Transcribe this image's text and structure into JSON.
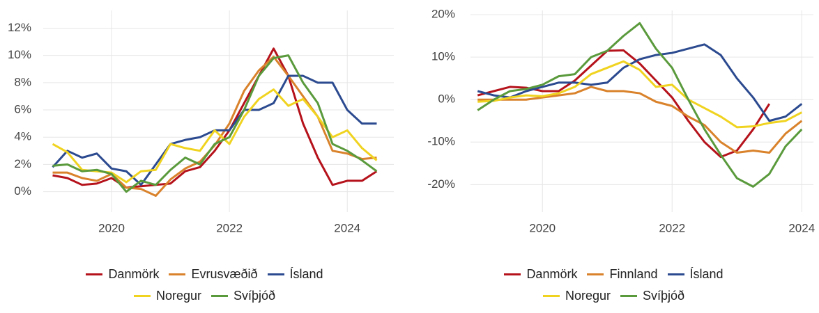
{
  "chart_data": [
    {
      "type": "line",
      "x": [
        2019,
        2019.25,
        2019.5,
        2019.75,
        2020,
        2020.25,
        2020.5,
        2020.75,
        2021,
        2021.25,
        2021.5,
        2021.75,
        2022,
        2022.25,
        2022.5,
        2022.75,
        2023,
        2023.25,
        2023.5,
        2023.75,
        2024,
        2024.25,
        2024.5
      ],
      "xlim": [
        2018.84,
        2024.79
      ],
      "xticks": [
        2020,
        2022,
        2024
      ],
      "ylim": [
        -1.5,
        13.3
      ],
      "yticks": [
        {
          "value": 0,
          "label": "0%"
        },
        {
          "value": 2,
          "label": "2%"
        },
        {
          "value": 4,
          "label": "4%"
        },
        {
          "value": 6,
          "label": "6%"
        },
        {
          "value": 8,
          "label": "8%"
        },
        {
          "value": 10,
          "label": "10%"
        },
        {
          "value": 12,
          "label": "12%"
        }
      ],
      "grid": true,
      "series": [
        {
          "name": "Danmörk",
          "color": "#b5121b",
          "values": [
            1.2,
            1.0,
            0.5,
            0.6,
            1.0,
            0.3,
            0.4,
            0.5,
            0.6,
            1.5,
            1.8,
            3.0,
            4.5,
            6.5,
            8.5,
            10.5,
            8.5,
            5.0,
            2.5,
            0.5,
            0.8,
            0.8,
            1.5
          ]
        },
        {
          "name": "Evrusvæðið",
          "color": "#d9822b",
          "values": [
            1.4,
            1.4,
            1.0,
            0.8,
            1.3,
            0.3,
            0.2,
            -0.3,
            0.9,
            1.7,
            2.2,
            3.4,
            5.0,
            7.4,
            8.9,
            9.9,
            8.5,
            7.0,
            5.5,
            3.0,
            2.8,
            2.4,
            2.5
          ]
        },
        {
          "name": "Ísland",
          "color": "#2b4a8f",
          "values": [
            1.8,
            3.0,
            2.5,
            2.8,
            1.7,
            1.5,
            0.5,
            2.0,
            3.5,
            3.8,
            4.0,
            4.5,
            4.5,
            6.0,
            6.0,
            6.5,
            8.5,
            8.5,
            8.0,
            8.0,
            6.0,
            5.0,
            5.0
          ]
        },
        {
          "name": "Noregur",
          "color": "#f0d320",
          "values": [
            3.5,
            2.9,
            1.6,
            1.5,
            1.4,
            0.7,
            1.5,
            1.6,
            3.5,
            3.2,
            3.0,
            4.5,
            3.5,
            5.5,
            6.8,
            7.5,
            6.3,
            6.8,
            5.5,
            4.0,
            4.5,
            3.2,
            2.3
          ]
        },
        {
          "name": "Svíþjóð",
          "color": "#5a9a3c",
          "values": [
            1.9,
            2.0,
            1.5,
            1.6,
            1.3,
            0.0,
            0.8,
            0.5,
            1.6,
            2.5,
            2.0,
            3.5,
            4.0,
            6.0,
            8.5,
            9.8,
            10.0,
            8.0,
            6.5,
            3.5,
            3.0,
            2.3,
            1.5
          ]
        }
      ]
    },
    {
      "type": "line",
      "x": [
        2019,
        2019.25,
        2019.5,
        2019.75,
        2020,
        2020.25,
        2020.5,
        2020.75,
        2021,
        2021.25,
        2021.5,
        2021.75,
        2022,
        2022.25,
        2022.5,
        2022.75,
        2023,
        2023.25,
        2023.5,
        2023.75,
        2024
      ],
      "xlim": [
        2018.89,
        2024.18
      ],
      "xticks": [
        2020,
        2022,
        2024
      ],
      "ylim": [
        -26.5,
        21
      ],
      "yticks": [
        {
          "value": -20,
          "label": "-20%"
        },
        {
          "value": -10,
          "label": "-10%"
        },
        {
          "value": 0,
          "label": "0%"
        },
        {
          "value": 10,
          "label": "10%"
        },
        {
          "value": 20,
          "label": "20%"
        }
      ],
      "grid": true,
      "series": [
        {
          "name": "Danmörk",
          "color": "#b5121b",
          "values": [
            1,
            2,
            3,
            2.8,
            2,
            2,
            4.5,
            8,
            11.5,
            11.6,
            8.5,
            4.5,
            0.5,
            -5,
            -10,
            -13.5,
            -12,
            -7,
            -1,
            null,
            null
          ]
        },
        {
          "name": "Finnland",
          "color": "#d9822b",
          "values": [
            0,
            0,
            0,
            0,
            0.5,
            1,
            1.5,
            3,
            2,
            2,
            1.5,
            -0.5,
            -1.5,
            -4,
            -6,
            -10,
            -12.5,
            -12,
            -12.5,
            -8,
            -5
          ]
        },
        {
          "name": "Ísland",
          "color": "#2b4a8f",
          "values": [
            2,
            1,
            0.5,
            2,
            3,
            4,
            4,
            3.5,
            4,
            7.5,
            9.5,
            10.5,
            11,
            12,
            13,
            10.5,
            5,
            0.5,
            -5,
            -4,
            -1
          ]
        },
        {
          "name": "Noregur",
          "color": "#f0d320",
          "values": [
            -0.5,
            -0.3,
            0.5,
            1,
            0.8,
            1.5,
            3,
            6,
            7.5,
            9,
            7,
            3,
            3.5,
            0,
            -2,
            -4,
            -6.5,
            -6.3,
            -5.5,
            -5,
            -3
          ]
        },
        {
          "name": "Svíþjóð",
          "color": "#5a9a3c",
          "values": [
            -2.5,
            0,
            2,
            2.5,
            3.5,
            5.5,
            6,
            10,
            11.5,
            15,
            18,
            12,
            7.5,
            0,
            -7,
            -13,
            -18.5,
            -20.5,
            -17.5,
            -11,
            -7
          ]
        }
      ]
    }
  ]
}
